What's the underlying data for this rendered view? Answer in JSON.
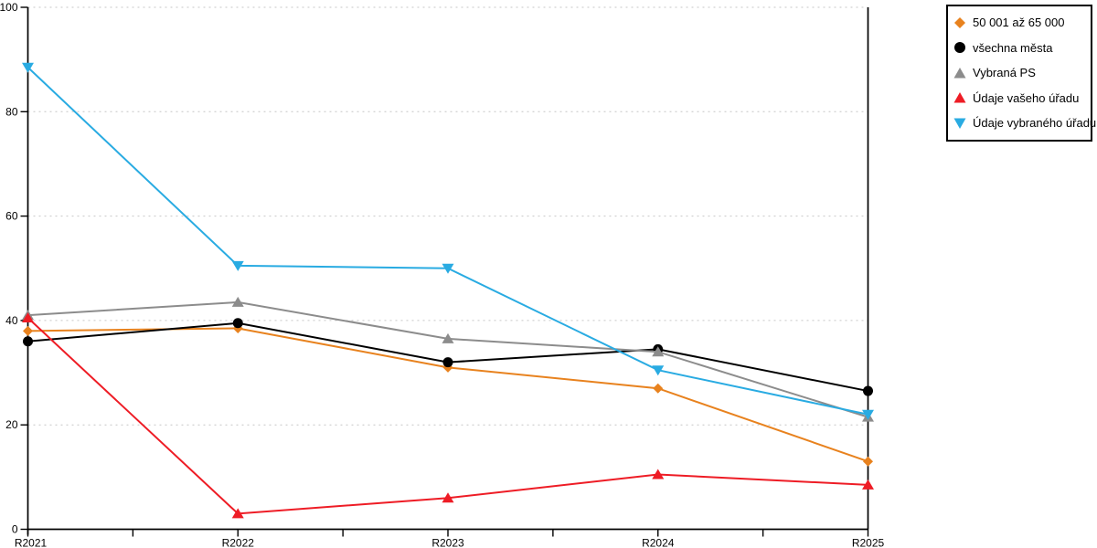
{
  "chart_data": {
    "type": "line",
    "title": "",
    "xlabel": "",
    "ylabel": "",
    "categories": [
      "R2021",
      "R2022",
      "R2023",
      "R2024",
      "R2025"
    ],
    "series": [
      {
        "name": "50 001 až 65 000",
        "color": "#E8821E",
        "marker": "diamond",
        "values": [
          38,
          38.5,
          31,
          27,
          13
        ]
      },
      {
        "name": "všechna města",
        "color": "#000000",
        "marker": "circle",
        "values": [
          36,
          39.5,
          32,
          34.5,
          26.5
        ]
      },
      {
        "name": "Vybraná PS",
        "color": "#8C8C8C",
        "marker": "triangle-up",
        "values": [
          41,
          43.5,
          36.5,
          34,
          21.5
        ]
      },
      {
        "name": "Údaje vašeho úřadu",
        "color": "#EE1C25",
        "marker": "triangle-up",
        "values": [
          40.5,
          3,
          6,
          10.5,
          8.5
        ]
      },
      {
        "name": "Údaje vybraného úřadu",
        "color": "#29ABE2",
        "marker": "triangle-down",
        "values": [
          88.5,
          50.5,
          50,
          30.5,
          22
        ]
      }
    ],
    "ylim": [
      0,
      100
    ],
    "yticks": [
      0,
      20,
      40,
      60,
      80,
      100
    ],
    "grid": "horizontal-dotted",
    "grid_color": "#C6C6C6",
    "axis_color": "#000000",
    "legend_position": "outside-top-right"
  }
}
